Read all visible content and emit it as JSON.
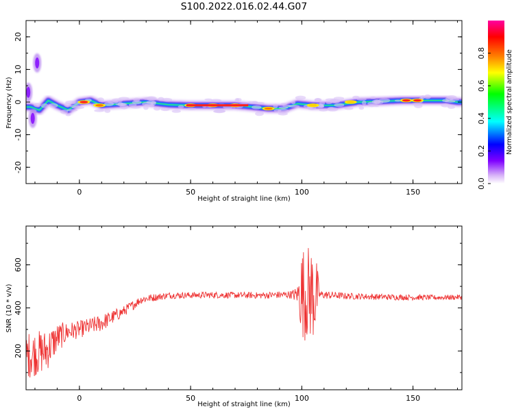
{
  "title": "S100.2022.016.02.44.G07",
  "chart_data": [
    {
      "type": "heatmap",
      "xlabel": "Height of straight line (km)",
      "ylabel": "Frequency (Hz)",
      "xlim": [
        -24,
        172
      ],
      "ylim": [
        -25,
        25
      ],
      "xticks": [
        0,
        50,
        100,
        150
      ],
      "xtick_labels": [
        "0",
        "50",
        "100",
        "150"
      ],
      "yticks": [
        -20,
        -10,
        0,
        10,
        20
      ],
      "ytick_labels": [
        "-20",
        "-10",
        "0",
        "10",
        "20"
      ],
      "colorbar": {
        "label": "Normalized spectral amplitude",
        "range": [
          0,
          1
        ],
        "ticks": [
          0.0,
          0.2,
          0.4,
          0.6,
          0.8
        ],
        "tick_labels": [
          "0.0",
          "0.2",
          "0.4",
          "0.6",
          "0.8"
        ],
        "colors": [
          "#ffffff",
          "#7f00ff",
          "#0000ff",
          "#00ffff",
          "#00ff00",
          "#ffff00",
          "#ff8000",
          "#ff0000",
          "#ff00a0"
        ]
      },
      "ridge": [
        [
          -22,
          -1.5
        ],
        [
          -18,
          -2.5
        ],
        [
          -14,
          0.5
        ],
        [
          -10,
          -1
        ],
        [
          -5,
          -2.5
        ],
        [
          0,
          0
        ],
        [
          5,
          0.5
        ],
        [
          10,
          -1
        ],
        [
          20,
          -0.5
        ],
        [
          30,
          0
        ],
        [
          40,
          -0.8
        ],
        [
          50,
          -1
        ],
        [
          60,
          -1
        ],
        [
          70,
          -1
        ],
        [
          78,
          -1.5
        ],
        [
          85,
          -2
        ],
        [
          92,
          -2
        ],
        [
          98,
          -0.5
        ],
        [
          105,
          -1
        ],
        [
          115,
          -1
        ],
        [
          125,
          0
        ],
        [
          135,
          0.2
        ],
        [
          145,
          0.5
        ],
        [
          155,
          0.5
        ],
        [
          165,
          0.5
        ],
        [
          170,
          0
        ]
      ],
      "hotspots": [
        {
          "x": 2,
          "y": 0,
          "amplitude": 0.95
        },
        {
          "x": 9,
          "y": -1,
          "amplitude": 0.9
        },
        {
          "x": 50,
          "y": -1,
          "amplitude": 0.97
        },
        {
          "x": 60,
          "y": -1,
          "amplitude": 0.97
        },
        {
          "x": 70,
          "y": -1,
          "amplitude": 0.95
        },
        {
          "x": 85,
          "y": -2,
          "amplitude": 0.9
        },
        {
          "x": 105,
          "y": -1,
          "amplitude": 0.8
        },
        {
          "x": 122,
          "y": 0,
          "amplitude": 0.75
        },
        {
          "x": 147,
          "y": 0.5,
          "amplitude": 0.97
        },
        {
          "x": 152,
          "y": 0.5,
          "amplitude": 0.95
        }
      ],
      "blobs": [
        {
          "x": -19,
          "y": 12,
          "amplitude": 0.2
        },
        {
          "x": -23,
          "y": 3,
          "amplitude": 0.3
        },
        {
          "x": -21,
          "y": -5,
          "amplitude": 0.3
        }
      ]
    },
    {
      "type": "line",
      "xlabel": "Height of straight line (km)",
      "ylabel": "SNR (10 * v/v)",
      "xlim": [
        -24,
        172
      ],
      "ylim": [
        20,
        780
      ],
      "xticks": [
        0,
        50,
        100,
        150
      ],
      "xtick_labels": [
        "0",
        "50",
        "100",
        "150"
      ],
      "yticks": [
        200,
        400,
        600
      ],
      "ytick_labels": [
        "200",
        "400",
        "600"
      ],
      "color": "#ee3333",
      "envelope": [
        {
          "x": -24,
          "mean": 180,
          "noise": 110
        },
        {
          "x": -15,
          "mean": 200,
          "noise": 100
        },
        {
          "x": -10,
          "mean": 260,
          "noise": 70
        },
        {
          "x": -5,
          "mean": 290,
          "noise": 45
        },
        {
          "x": 0,
          "mean": 300,
          "noise": 40
        },
        {
          "x": 10,
          "mean": 330,
          "noise": 40
        },
        {
          "x": 20,
          "mean": 385,
          "noise": 25
        },
        {
          "x": 28,
          "mean": 440,
          "noise": 20
        },
        {
          "x": 40,
          "mean": 458,
          "noise": 15
        },
        {
          "x": 60,
          "mean": 460,
          "noise": 15
        },
        {
          "x": 80,
          "mean": 458,
          "noise": 15
        },
        {
          "x": 95,
          "mean": 462,
          "noise": 18
        },
        {
          "x": 98,
          "mean": 460,
          "noise": 40
        },
        {
          "x": 100,
          "mean": 470,
          "noise": 220
        },
        {
          "x": 106,
          "mean": 470,
          "noise": 230
        },
        {
          "x": 108,
          "mean": 462,
          "noise": 20
        },
        {
          "x": 120,
          "mean": 455,
          "noise": 15
        },
        {
          "x": 140,
          "mean": 450,
          "noise": 14
        },
        {
          "x": 160,
          "mean": 448,
          "noise": 12
        },
        {
          "x": 172,
          "mean": 450,
          "noise": 12
        }
      ]
    }
  ]
}
